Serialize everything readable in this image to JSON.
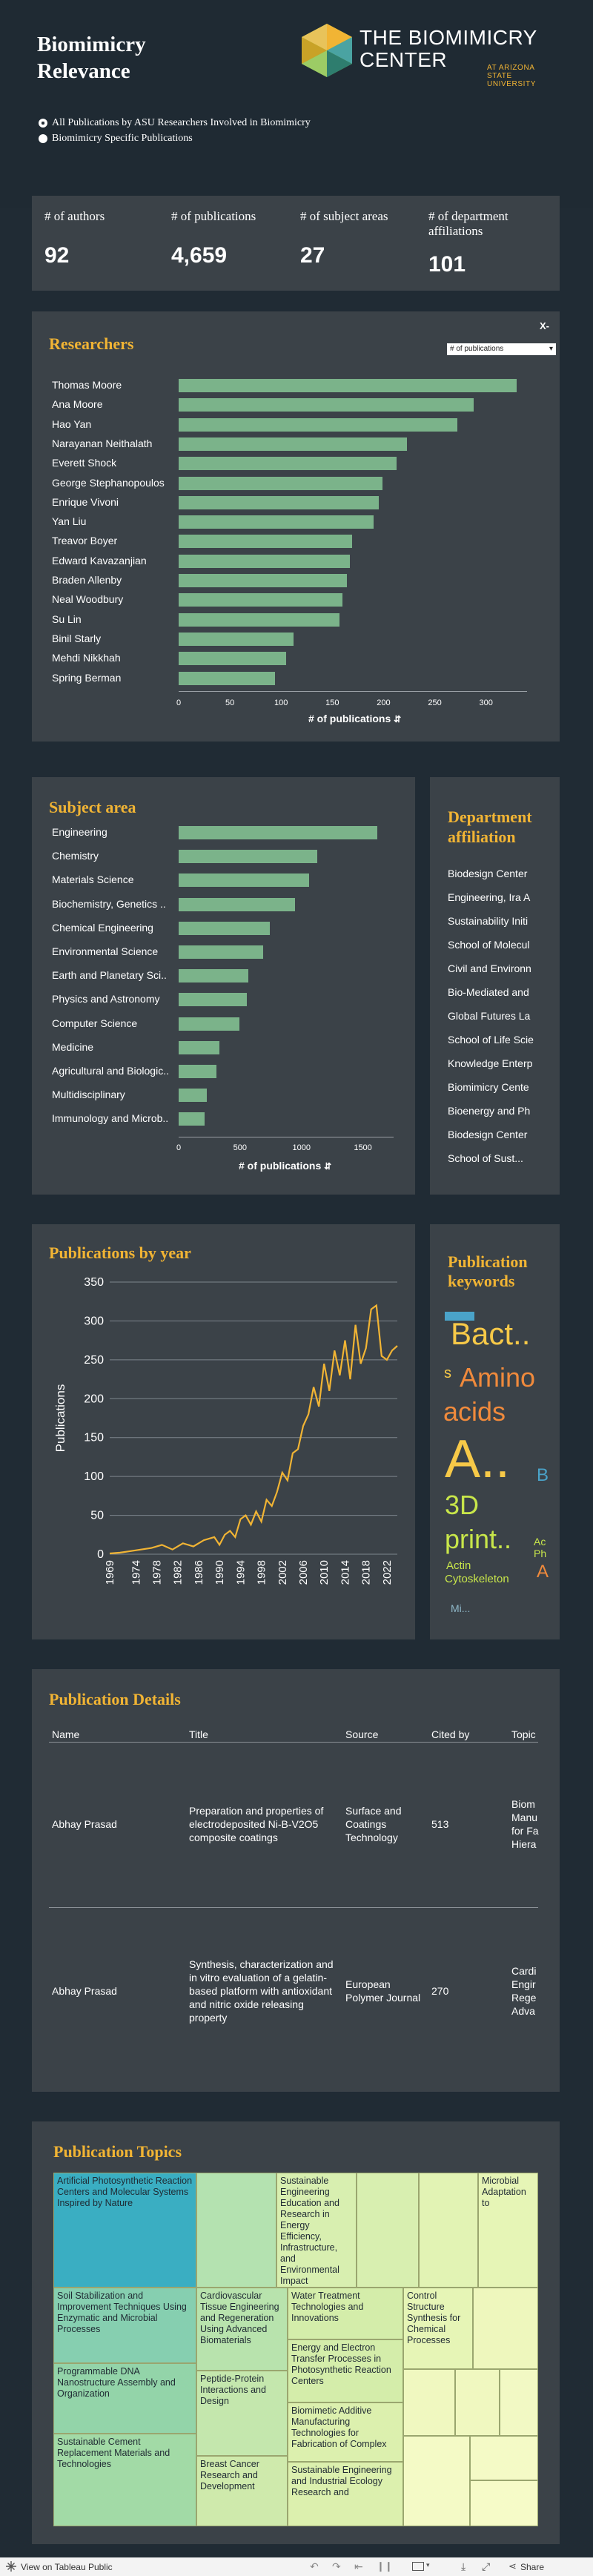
{
  "header": {
    "title": "Biomimicry Relevance",
    "logo_main": "THE BIOMIMICRY CENTER",
    "logo_sub": "AT ARIZONA STATE UNIVERSITY",
    "filter_options": [
      {
        "label": "All Publications by ASU Researchers Involved in Biomimicry",
        "selected": true
      },
      {
        "label": "Biomimicry Specific Publications",
        "selected": false
      }
    ]
  },
  "kpis": [
    {
      "label": "# of authors",
      "value": "92"
    },
    {
      "label": "# of publications",
      "value": "4,659"
    },
    {
      "label": "# of subject areas",
      "value": "27"
    },
    {
      "label": "# of department affiliations",
      "value": "101"
    }
  ],
  "researchers": {
    "title": "Researchers",
    "x_axis_control": "X-",
    "dropdown_value": "# of publications",
    "axis_title": "# of publications"
  },
  "subject_area": {
    "title": "Subject area",
    "axis_title": "# of publications"
  },
  "department": {
    "title": "Department affiliation",
    "items": [
      "Biodesign Center",
      "Engineering, Ira A",
      "Sustainability Initi",
      "School of Molecul",
      "Civil and Environn",
      "Bio-Mediated and",
      "Global Futures La",
      "School of Life Scie",
      "Knowledge Enterp",
      "Biomimicry Cente",
      "Bioenergy and Ph",
      "Biodesign Center",
      "School of Sust..."
    ]
  },
  "pubs_by_year": {
    "title": "Publications by year",
    "ylabel": "Publications"
  },
  "keywords": {
    "title": "Publication keywords",
    "words": [
      "Bact..",
      "Amino",
      "acids",
      "A..",
      "3D",
      "print..",
      "Actin",
      "Cytoskeleton",
      "Mi...",
      "Ac",
      "Ph",
      "B",
      "A",
      "s"
    ]
  },
  "details": {
    "title": "Publication Details",
    "columns": [
      "Name",
      "Title",
      "Source",
      "Cited by",
      "Topic"
    ],
    "rows": [
      {
        "name": "Abhay Prasad",
        "title": "Preparation and properties of electrodeposited Ni-B-V2O5 composite coatings",
        "source": "Surface and Coatings Technology",
        "cited_by": "513",
        "topic": "Biom Manu for Fa Hiera"
      },
      {
        "name": "Abhay Prasad",
        "title": "Synthesis, characterization and in vitro evaluation of a gelatin-based platform with antioxidant and nitric oxide releasing property",
        "source": "European Polymer Journal",
        "cited_by": "270",
        "topic": "Cardi Engir Rege Adva"
      }
    ]
  },
  "topics": {
    "title": "Publication Topics",
    "cells": [
      "Artificial Photosynthetic Reaction Centers and Molecular Systems Inspired by Nature",
      "Sustainable Engineering Education and Research in Energy Efficiency, Infrastructure, and Environmental Impact",
      "Microbial Adaptation to",
      "Soil Stabilization and Improvement Techniques Using Enzymatic and Microbial Processes",
      "Cardiovascular Tissue Engineering and Regeneration Using Advanced Biomaterials",
      "Water Treatment Technologies and Innovations",
      "Control Structure Synthesis for Chemical Processes",
      "Energy and Electron Transfer Processes in Photosynthetic Reaction Centers",
      "Programmable DNA Nanostructure Assembly and Organization",
      "Peptide-Protein Interactions and Design",
      "Biomimetic Additive Manufacturing Technologies for Fabrication of Complex",
      "Sustainable Cement Replacement Materials and Technologies",
      "Breast Cancer Research and Development",
      "Sustainable Engineering and Industrial Ecology Research and"
    ]
  },
  "footer": {
    "view_label": "View on Tableau Public",
    "share_label": "Share"
  },
  "chart_data": [
    {
      "type": "bar",
      "orientation": "horizontal",
      "title": "Researchers",
      "xlabel": "# of publications",
      "categories": [
        "Thomas Moore",
        "Ana Moore",
        "Hao Yan",
        "Narayanan Neithalath",
        "Everett Shock",
        "George Stephanopoulos",
        "Enrique Vivoni",
        "Yan Liu",
        "Treavor Boyer",
        "Edward Kavazanjian",
        "Braden Allenby",
        "Neal Woodbury",
        "Su Lin",
        "Binil Starly",
        "Mehdi Nikkhah",
        "Spring Berman"
      ],
      "values": [
        330,
        288,
        272,
        223,
        213,
        199,
        195,
        190,
        169,
        167,
        164,
        160,
        157,
        112,
        105,
        94
      ],
      "xlim": [
        0,
        340
      ],
      "ticks": [
        0,
        50,
        100,
        150,
        200,
        250,
        300
      ]
    },
    {
      "type": "bar",
      "orientation": "horizontal",
      "title": "Subject area",
      "xlabel": "# of publications",
      "categories": [
        "Engineering",
        "Chemistry",
        "Materials Science",
        "Biochemistry, Genetics ..",
        "Chemical Engineering",
        "Environmental Science",
        "Earth and Planetary Sci..",
        "Physics and Astronomy",
        "Computer Science",
        "Medicine",
        "Agricultural and Biologic..",
        "Multidisciplinary",
        "Immunology and Microb.."
      ],
      "values": [
        1620,
        1130,
        1060,
        950,
        745,
        690,
        565,
        555,
        495,
        330,
        305,
        230,
        210
      ],
      "xlim": [
        0,
        1750
      ],
      "ticks": [
        0,
        500,
        1000,
        1500
      ]
    },
    {
      "type": "line",
      "title": "Publications by year",
      "ylabel": "Publications",
      "ylim": [
        0,
        350
      ],
      "yticks": [
        0,
        50,
        100,
        150,
        200,
        250,
        300,
        350
      ],
      "xticks": [
        "1969",
        "1974",
        "1978",
        "1982",
        "1986",
        "1990",
        "1994",
        "1998",
        "2002",
        "2006",
        "2010",
        "2014",
        "2018",
        "2022"
      ],
      "x": [
        1969,
        1971,
        1973,
        1975,
        1977,
        1979,
        1981,
        1983,
        1985,
        1987,
        1989,
        1990,
        1991,
        1992,
        1993,
        1994,
        1995,
        1996,
        1997,
        1998,
        1999,
        2000,
        2001,
        2002,
        2003,
        2004,
        2005,
        2006,
        2007,
        2008,
        2009,
        2010,
        2011,
        2012,
        2013,
        2014,
        2015,
        2016,
        2017,
        2018,
        2019,
        2020,
        2021,
        2022,
        2023,
        2024
      ],
      "y": [
        1,
        2,
        4,
        6,
        8,
        12,
        6,
        14,
        10,
        18,
        22,
        12,
        25,
        30,
        22,
        45,
        50,
        38,
        55,
        42,
        70,
        62,
        80,
        105,
        95,
        130,
        135,
        165,
        180,
        215,
        190,
        245,
        210,
        262,
        230,
        275,
        225,
        295,
        245,
        265,
        315,
        320,
        255,
        250,
        262,
        268
      ]
    },
    {
      "type": "table",
      "title": "Publication Details",
      "columns": [
        "Name",
        "Title",
        "Source",
        "Cited by",
        "Topic"
      ]
    }
  ]
}
